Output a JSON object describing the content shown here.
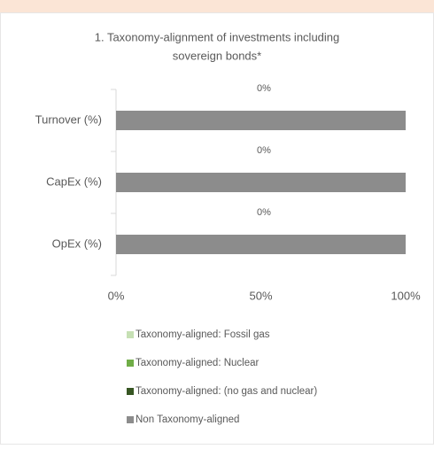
{
  "chart_data": {
    "type": "stacked-bar-horizontal",
    "title": [
      "1. Taxonomy-alignment of investments including",
      "sovereign bonds*"
    ],
    "categories": [
      "Turnover (%)",
      "CapEx (%)",
      "OpEx (%)"
    ],
    "series": [
      {
        "name": "Taxonomy-aligned: Fossil gas",
        "color": "#c6e0b4",
        "values": [
          0,
          0,
          0
        ]
      },
      {
        "name": "Taxonomy-aligned: Nuclear",
        "color": "#70ad47",
        "values": [
          0,
          0,
          0
        ]
      },
      {
        "name": "Taxonomy-aligned: (no gas and nuclear)",
        "color": "#375623",
        "values": [
          0,
          0,
          0
        ],
        "value_labels": [
          "0%",
          "0%",
          "0%"
        ]
      },
      {
        "name": "Non Taxonomy-aligned",
        "color": "#8c8c8c",
        "values": [
          100,
          100,
          100
        ]
      }
    ],
    "xlim": [
      0,
      100
    ],
    "xticks": [
      {
        "value": 0,
        "label": "0%"
      },
      {
        "value": 50,
        "label": "50%"
      },
      {
        "value": 100,
        "label": "100%"
      }
    ],
    "legend": "bottom"
  }
}
